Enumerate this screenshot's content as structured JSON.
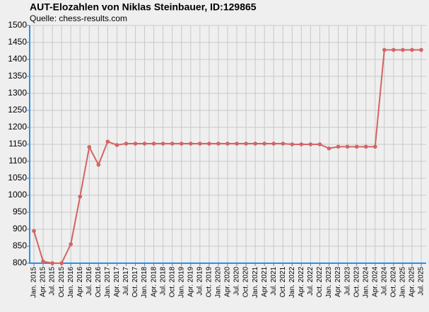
{
  "chart_data": {
    "type": "line",
    "title": "AUT-Elozahlen von Niklas Steinbauer, ID:129865",
    "subtitle": "Quelle: chess-results.com",
    "categories": [
      "Jan. 2015",
      "Apr. 2015",
      "Jul. 2015",
      "Oct. 2015",
      "Jan. 2016",
      "Apr. 2016",
      "Jul. 2016",
      "Oct. 2016",
      "Jan. 2017",
      "Apr. 2017",
      "Jul. 2017",
      "Oct. 2017",
      "Jan. 2018",
      "Apr. 2018",
      "Jul. 2018",
      "Oct. 2018",
      "Jan. 2019",
      "Apr. 2019",
      "Jul. 2019",
      "Oct. 2019",
      "Jan. 2020",
      "Apr. 2020",
      "Jul. 2020",
      "Oct. 2020",
      "Jan. 2021",
      "Apr. 2021",
      "Jul. 2021",
      "Oct. 2021",
      "Jan. 2022",
      "Apr. 2022",
      "Jul. 2022",
      "Oct. 2022",
      "Jan. 2023",
      "Apr. 2023",
      "Jul. 2023",
      "Oct. 2023",
      "Jan. 2024",
      "Apr. 2024",
      "Jul. 2024",
      "Oct. 2024",
      "Jan. 2025",
      "Apr. 2025",
      "Jul. 2025"
    ],
    "series": [
      {
        "color": "#d46464",
        "values": [
          895,
          805,
          800,
          800,
          856,
          996,
          1142,
          1090,
          1158,
          1148,
          1152,
          1152,
          1152,
          1152,
          1152,
          1152,
          1152,
          1152,
          1152,
          1152,
          1152,
          1152,
          1152,
          1152,
          1152,
          1152,
          1152,
          1152,
          1150,
          1150,
          1150,
          1150,
          1138,
          1143,
          1143,
          1143,
          1143,
          1143,
          1428,
          1428,
          1428,
          1428,
          1428
        ]
      }
    ],
    "ylim": [
      800,
      1500
    ],
    "yticks": [
      800,
      850,
      900,
      950,
      1000,
      1050,
      1100,
      1150,
      1200,
      1250,
      1300,
      1350,
      1400,
      1450,
      1500
    ],
    "grid": true
  }
}
